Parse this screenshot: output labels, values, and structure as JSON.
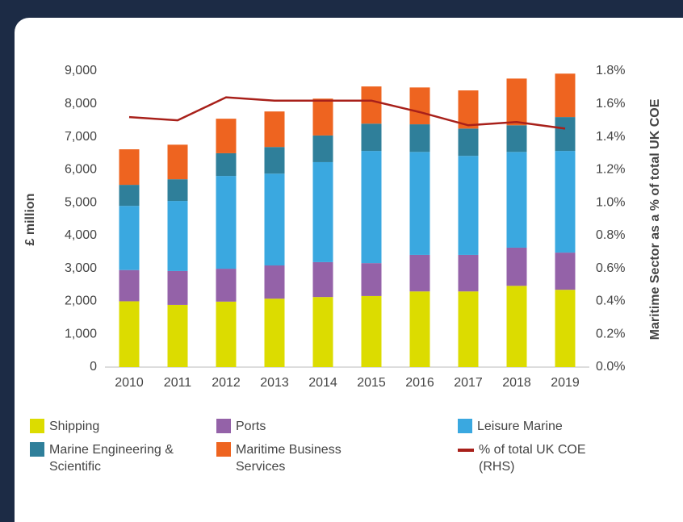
{
  "chart_data": {
    "type": "stacked-bar-line",
    "y_label": "£ million",
    "y2_label": "Maritime Sector as a % of total UK COE",
    "categories": [
      "2010",
      "2011",
      "2012",
      "2013",
      "2014",
      "2015",
      "2016",
      "2017",
      "2018",
      "2019"
    ],
    "series": [
      {
        "name": "Shipping",
        "color": "#dcdc00",
        "values": [
          2000,
          1890,
          1990,
          2080,
          2130,
          2160,
          2300,
          2300,
          2470,
          2350
        ]
      },
      {
        "name": "Ports",
        "color": "#9462a8",
        "values": [
          950,
          1030,
          1000,
          1010,
          1060,
          1000,
          1110,
          1110,
          1160,
          1130
        ]
      },
      {
        "name": "Leisure Marine",
        "color": "#3aa8e0",
        "values": [
          1950,
          2130,
          2820,
          2790,
          3040,
          3410,
          3130,
          3010,
          2910,
          3090
        ]
      },
      {
        "name": "Marine Engineering & Scientific",
        "color": "#2f7f9a",
        "values": [
          640,
          660,
          690,
          810,
          810,
          830,
          840,
          830,
          810,
          1030
        ]
      },
      {
        "name": "Maritime Business Services",
        "color": "#ee6420",
        "values": [
          1080,
          1050,
          1050,
          1080,
          1120,
          1130,
          1120,
          1160,
          1420,
          1320
        ]
      },
      {
        "name": "% of total UK COE (RHS)",
        "color": "#a8201a",
        "axis": "y2",
        "values": [
          1.52,
          1.5,
          1.64,
          1.62,
          1.62,
          1.62,
          1.55,
          1.47,
          1.49,
          1.45
        ]
      }
    ],
    "ylim": [
      0,
      9000
    ],
    "yticks": [
      0,
      {
        "value": 1000,
        "label": "1,000"
      },
      {
        "value": 2000,
        "label": "2,000"
      },
      {
        "value": 3000,
        "label": "3,000"
      },
      {
        "value": 4000,
        "label": "4,000"
      },
      {
        "value": 5000,
        "label": "5,000"
      },
      {
        "value": 6000,
        "label": "6,000"
      },
      {
        "value": 7000,
        "label": "7,000"
      },
      {
        "value": 8000,
        "label": "8,000"
      },
      {
        "value": 9000,
        "label": "9,000"
      }
    ],
    "y2lim": [
      0,
      1.8
    ],
    "y2ticks": [
      {
        "value": 0,
        "label": "0.0%"
      },
      {
        "value": 0.2,
        "label": "0.2%"
      },
      {
        "value": 0.4,
        "label": "0.4%"
      },
      {
        "value": 0.6,
        "label": "0.6%"
      },
      {
        "value": 0.8,
        "label": "0.8%"
      },
      {
        "value": 1,
        "label": "1.0%"
      },
      {
        "value": 1.2,
        "label": "1.2%"
      },
      {
        "value": 1.4,
        "label": "1.4%"
      },
      {
        "value": 1.6,
        "label": "1.6%"
      },
      {
        "value": 1.8,
        "label": "1.8%"
      }
    ],
    "grid": false,
    "legend": "bottom"
  }
}
